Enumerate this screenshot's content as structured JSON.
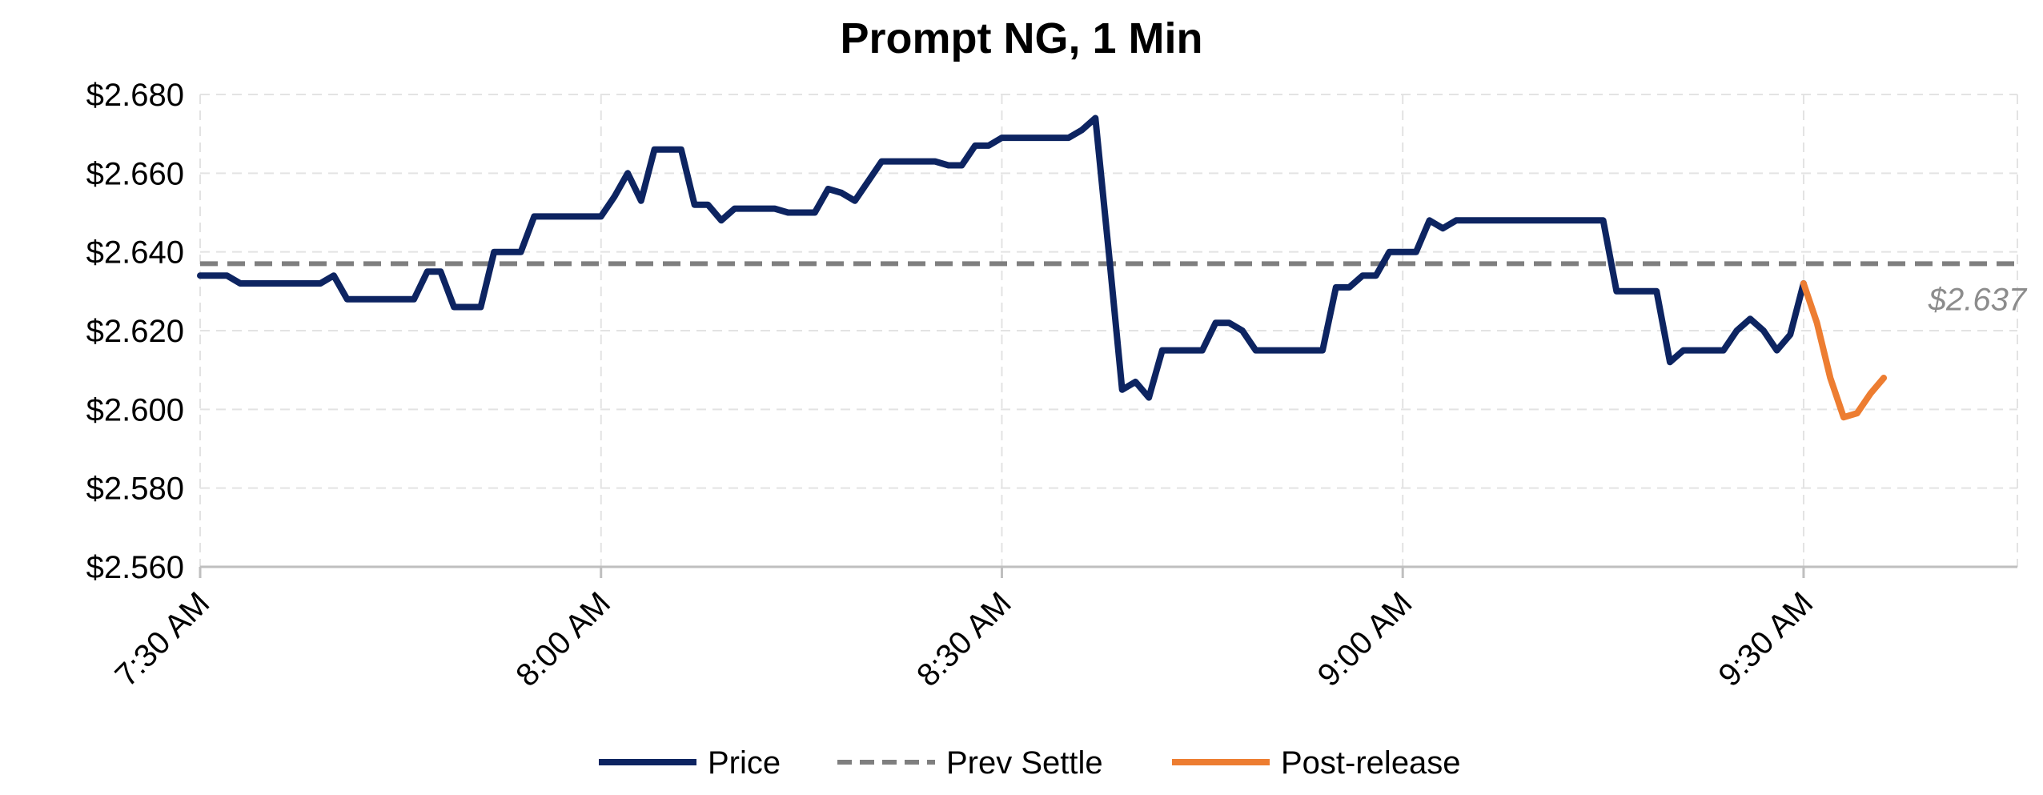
{
  "chart_data": {
    "type": "line",
    "title": "Prompt NG, 1 Min",
    "xlabel": "",
    "ylabel": "",
    "x_unit": "minutes after 7:30 AM",
    "xlim": [
      0,
      136
    ],
    "ylim": [
      2.56,
      2.68
    ],
    "y_ticks": [
      2.56,
      2.58,
      2.6,
      2.62,
      2.64,
      2.66,
      2.68
    ],
    "y_tick_labels": [
      "$2.560",
      "$2.580",
      "$2.600",
      "$2.620",
      "$2.640",
      "$2.660",
      "$2.680"
    ],
    "x_ticks": [
      0,
      30,
      60,
      90,
      120
    ],
    "x_tick_labels": [
      "7:30 AM",
      "8:00 AM",
      "8:30 AM",
      "9:00 AM",
      "9:30 AM"
    ],
    "grid": true,
    "legend_position": "bottom",
    "series": [
      {
        "name": "Price",
        "color": "#0d2461",
        "style": "solid",
        "points": [
          [
            0,
            2.634
          ],
          [
            1,
            2.634
          ],
          [
            2,
            2.634
          ],
          [
            3,
            2.632
          ],
          [
            4,
            2.632
          ],
          [
            5,
            2.632
          ],
          [
            6,
            2.632
          ],
          [
            7,
            2.632
          ],
          [
            8,
            2.632
          ],
          [
            9,
            2.632
          ],
          [
            10,
            2.634
          ],
          [
            11,
            2.628
          ],
          [
            12,
            2.628
          ],
          [
            13,
            2.628
          ],
          [
            14,
            2.628
          ],
          [
            15,
            2.628
          ],
          [
            16,
            2.628
          ],
          [
            17,
            2.635
          ],
          [
            18,
            2.635
          ],
          [
            19,
            2.626
          ],
          [
            20,
            2.626
          ],
          [
            21,
            2.626
          ],
          [
            22,
            2.64
          ],
          [
            23,
            2.64
          ],
          [
            24,
            2.64
          ],
          [
            25,
            2.649
          ],
          [
            26,
            2.649
          ],
          [
            27,
            2.649
          ],
          [
            28,
            2.649
          ],
          [
            29,
            2.649
          ],
          [
            30,
            2.649
          ],
          [
            31,
            2.654
          ],
          [
            32,
            2.66
          ],
          [
            33,
            2.653
          ],
          [
            34,
            2.666
          ],
          [
            35,
            2.666
          ],
          [
            36,
            2.666
          ],
          [
            37,
            2.652
          ],
          [
            38,
            2.652
          ],
          [
            39,
            2.648
          ],
          [
            40,
            2.651
          ],
          [
            41,
            2.651
          ],
          [
            42,
            2.651
          ],
          [
            43,
            2.651
          ],
          [
            44,
            2.65
          ],
          [
            45,
            2.65
          ],
          [
            46,
            2.65
          ],
          [
            47,
            2.656
          ],
          [
            48,
            2.655
          ],
          [
            49,
            2.653
          ],
          [
            50,
            2.658
          ],
          [
            51,
            2.663
          ],
          [
            52,
            2.663
          ],
          [
            53,
            2.663
          ],
          [
            54,
            2.663
          ],
          [
            55,
            2.663
          ],
          [
            56,
            2.662
          ],
          [
            57,
            2.662
          ],
          [
            58,
            2.667
          ],
          [
            59,
            2.667
          ],
          [
            60,
            2.669
          ],
          [
            61,
            2.669
          ],
          [
            62,
            2.669
          ],
          [
            63,
            2.669
          ],
          [
            64,
            2.669
          ],
          [
            65,
            2.669
          ],
          [
            66,
            2.671
          ],
          [
            67,
            2.674
          ],
          [
            68,
            2.64
          ],
          [
            69,
            2.605
          ],
          [
            70,
            2.607
          ],
          [
            71,
            2.603
          ],
          [
            72,
            2.615
          ],
          [
            73,
            2.615
          ],
          [
            74,
            2.615
          ],
          [
            75,
            2.615
          ],
          [
            76,
            2.622
          ],
          [
            77,
            2.622
          ],
          [
            78,
            2.62
          ],
          [
            79,
            2.615
          ],
          [
            80,
            2.615
          ],
          [
            81,
            2.615
          ],
          [
            82,
            2.615
          ],
          [
            83,
            2.615
          ],
          [
            84,
            2.615
          ],
          [
            85,
            2.631
          ],
          [
            86,
            2.631
          ],
          [
            87,
            2.634
          ],
          [
            88,
            2.634
          ],
          [
            89,
            2.64
          ],
          [
            90,
            2.64
          ],
          [
            91,
            2.64
          ],
          [
            92,
            2.648
          ],
          [
            93,
            2.646
          ],
          [
            94,
            2.648
          ],
          [
            95,
            2.648
          ],
          [
            96,
            2.648
          ],
          [
            97,
            2.648
          ],
          [
            98,
            2.648
          ],
          [
            99,
            2.648
          ],
          [
            100,
            2.648
          ],
          [
            101,
            2.648
          ],
          [
            102,
            2.648
          ],
          [
            103,
            2.648
          ],
          [
            104,
            2.648
          ],
          [
            105,
            2.648
          ],
          [
            106,
            2.63
          ],
          [
            107,
            2.63
          ],
          [
            108,
            2.63
          ],
          [
            109,
            2.63
          ],
          [
            110,
            2.612
          ],
          [
            111,
            2.615
          ],
          [
            112,
            2.615
          ],
          [
            113,
            2.615
          ],
          [
            114,
            2.615
          ],
          [
            115,
            2.62
          ],
          [
            116,
            2.623
          ],
          [
            117,
            2.62
          ],
          [
            118,
            2.615
          ],
          [
            119,
            2.619
          ],
          [
            120,
            2.632
          ]
        ]
      },
      {
        "name": "Prev Settle",
        "color": "#7f7f7f",
        "style": "dashed",
        "points": [
          [
            0,
            2.637
          ],
          [
            136,
            2.637
          ]
        ]
      },
      {
        "name": "Post-release",
        "color": "#ed7d31",
        "style": "solid",
        "points": [
          [
            120,
            2.632
          ],
          [
            121,
            2.622
          ],
          [
            122,
            2.608
          ],
          [
            123,
            2.598
          ],
          [
            124,
            2.599
          ],
          [
            125,
            2.604
          ],
          [
            126,
            2.608
          ]
        ]
      }
    ],
    "annotations": [
      {
        "text": "$2.637",
        "x": 133,
        "y": 2.628
      }
    ]
  }
}
